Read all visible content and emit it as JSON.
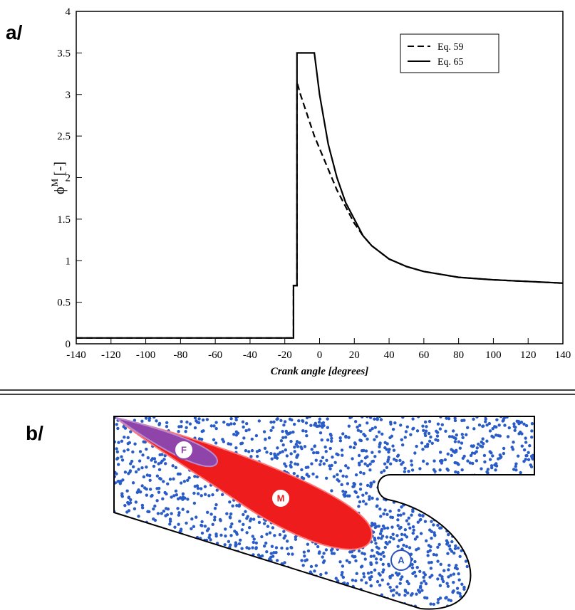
{
  "panel_a_label": "a/",
  "chart_data": {
    "type": "line",
    "y_label": {
      "symbol": "ϕ",
      "superscript": "M",
      "unit": "[-]"
    },
    "x_label": "Crank angle [degrees]",
    "x": [
      -140,
      -15,
      -15,
      -13,
      -13,
      -11,
      -3,
      0,
      5,
      10,
      15,
      20,
      25,
      30,
      40,
      50,
      60,
      80,
      100,
      120,
      140
    ],
    "series": [
      {
        "name": "Eq. 59",
        "color": "#000000",
        "style": "dashed",
        "values": [
          0.07,
          0.07,
          0.7,
          0.7,
          3.15,
          3.0,
          2.5,
          2.35,
          2.1,
          1.85,
          1.65,
          1.45,
          1.3,
          1.18,
          1.02,
          0.93,
          0.87,
          0.8,
          0.77,
          0.75,
          0.73
        ]
      },
      {
        "name": "Eq. 65",
        "color": "#000000",
        "style": "solid",
        "values": [
          0.07,
          0.07,
          0.7,
          0.7,
          3.5,
          3.5,
          3.5,
          3.0,
          2.4,
          2.0,
          1.7,
          1.5,
          1.3,
          1.18,
          1.02,
          0.93,
          0.87,
          0.8,
          0.77,
          0.75,
          0.73
        ]
      }
    ],
    "xlim": [
      -140,
      140
    ],
    "xticks": [
      -140,
      -120,
      -100,
      -80,
      -60,
      -40,
      -20,
      0,
      20,
      40,
      60,
      80,
      100,
      120,
      140
    ],
    "ylim": [
      0,
      4
    ],
    "yticks": [
      0,
      0.5,
      1,
      1.5,
      2,
      2.5,
      3,
      3.5,
      4
    ],
    "legend": "upper right"
  },
  "panel_b_label": "b/",
  "diagram": {
    "labels": {
      "F": "F",
      "M": "M",
      "A": "A"
    }
  }
}
